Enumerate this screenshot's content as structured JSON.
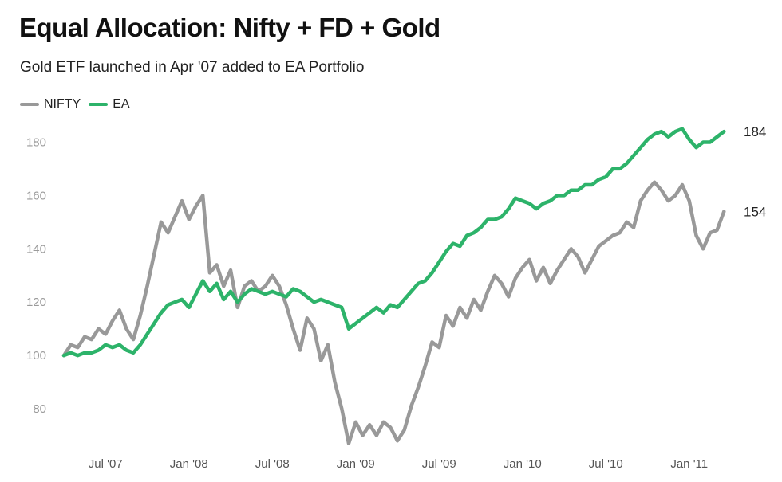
{
  "chart_data": {
    "type": "line",
    "title": "Equal Allocation: Nifty + FD + Gold",
    "subtitle": "Gold ETF launched in Apr '07 added to EA Portfolio",
    "xlabel": "",
    "ylabel": "",
    "ylim": [
      60,
      190
    ],
    "yticks": [
      80,
      100,
      120,
      140,
      160,
      180
    ],
    "xlim": [
      0,
      48
    ],
    "xticks": [
      {
        "x": 3,
        "label": "Jul '07"
      },
      {
        "x": 9,
        "label": "Jan '08"
      },
      {
        "x": 15,
        "label": "Jul '08"
      },
      {
        "x": 21,
        "label": "Jan '09"
      },
      {
        "x": 27,
        "label": "Jul '09"
      },
      {
        "x": 33,
        "label": "Jan '10"
      },
      {
        "x": 39,
        "label": "Jul '10"
      },
      {
        "x": 45,
        "label": "Jan '11"
      }
    ],
    "x_unit": "months since Apr '07",
    "legend_position": "top-left",
    "series": [
      {
        "name": "NIFTY",
        "color": "#999999",
        "end_label": "154",
        "points": [
          [
            0,
            100
          ],
          [
            0.5,
            104
          ],
          [
            1,
            103
          ],
          [
            1.5,
            107
          ],
          [
            2,
            106
          ],
          [
            2.5,
            110
          ],
          [
            3,
            108
          ],
          [
            3.5,
            113
          ],
          [
            4,
            117
          ],
          [
            4.5,
            110
          ],
          [
            5,
            106
          ],
          [
            5.5,
            115
          ],
          [
            6,
            126
          ],
          [
            6.5,
            138
          ],
          [
            7,
            150
          ],
          [
            7.5,
            146
          ],
          [
            8,
            152
          ],
          [
            8.5,
            158
          ],
          [
            9,
            151
          ],
          [
            9.5,
            156
          ],
          [
            10,
            160
          ],
          [
            10.5,
            131
          ],
          [
            11,
            134
          ],
          [
            11.5,
            126
          ],
          [
            12,
            132
          ],
          [
            12.5,
            118
          ],
          [
            13,
            126
          ],
          [
            13.5,
            128
          ],
          [
            14,
            124
          ],
          [
            14.5,
            126
          ],
          [
            15,
            130
          ],
          [
            15.5,
            126
          ],
          [
            16,
            119
          ],
          [
            16.5,
            110
          ],
          [
            17,
            102
          ],
          [
            17.5,
            114
          ],
          [
            18,
            110
          ],
          [
            18.5,
            98
          ],
          [
            19,
            104
          ],
          [
            19.5,
            90
          ],
          [
            20,
            80
          ],
          [
            20.5,
            67
          ],
          [
            21,
            75
          ],
          [
            21.5,
            70
          ],
          [
            22,
            74
          ],
          [
            22.5,
            70
          ],
          [
            23,
            75
          ],
          [
            23.5,
            73
          ],
          [
            24,
            68
          ],
          [
            24.5,
            72
          ],
          [
            25,
            81
          ],
          [
            25.5,
            88
          ],
          [
            26,
            96
          ],
          [
            26.5,
            105
          ],
          [
            27,
            103
          ],
          [
            27.5,
            115
          ],
          [
            28,
            111
          ],
          [
            28.5,
            118
          ],
          [
            29,
            114
          ],
          [
            29.5,
            121
          ],
          [
            30,
            117
          ],
          [
            30.5,
            124
          ],
          [
            31,
            130
          ],
          [
            31.5,
            127
          ],
          [
            32,
            122
          ],
          [
            32.5,
            129
          ],
          [
            33,
            133
          ],
          [
            33.5,
            136
          ],
          [
            34,
            128
          ],
          [
            34.5,
            133
          ],
          [
            35,
            127
          ],
          [
            35.5,
            132
          ],
          [
            36,
            136
          ],
          [
            36.5,
            140
          ],
          [
            37,
            137
          ],
          [
            37.5,
            131
          ],
          [
            38,
            136
          ],
          [
            38.5,
            141
          ],
          [
            39,
            143
          ],
          [
            39.5,
            145
          ],
          [
            40,
            146
          ],
          [
            40.5,
            150
          ],
          [
            41,
            148
          ],
          [
            41.5,
            158
          ],
          [
            42,
            162
          ],
          [
            42.5,
            165
          ],
          [
            43,
            162
          ],
          [
            43.5,
            158
          ],
          [
            44,
            160
          ],
          [
            44.5,
            164
          ],
          [
            45,
            158
          ],
          [
            45.5,
            145
          ],
          [
            46,
            140
          ],
          [
            46.5,
            146
          ],
          [
            47,
            147
          ],
          [
            47.5,
            154
          ]
        ]
      },
      {
        "name": "EA",
        "color": "#2db36a",
        "end_label": "184",
        "points": [
          [
            0,
            100
          ],
          [
            0.5,
            101
          ],
          [
            1,
            100
          ],
          [
            1.5,
            101
          ],
          [
            2,
            101
          ],
          [
            2.5,
            102
          ],
          [
            3,
            104
          ],
          [
            3.5,
            103
          ],
          [
            4,
            104
          ],
          [
            4.5,
            102
          ],
          [
            5,
            101
          ],
          [
            5.5,
            104
          ],
          [
            6,
            108
          ],
          [
            6.5,
            112
          ],
          [
            7,
            116
          ],
          [
            7.5,
            119
          ],
          [
            8,
            120
          ],
          [
            8.5,
            121
          ],
          [
            9,
            118
          ],
          [
            9.5,
            123
          ],
          [
            10,
            128
          ],
          [
            10.5,
            124
          ],
          [
            11,
            127
          ],
          [
            11.5,
            121
          ],
          [
            12,
            124
          ],
          [
            12.5,
            120
          ],
          [
            13,
            123
          ],
          [
            13.5,
            125
          ],
          [
            14,
            124
          ],
          [
            14.5,
            123
          ],
          [
            15,
            124
          ],
          [
            15.5,
            123
          ],
          [
            16,
            122
          ],
          [
            16.5,
            125
          ],
          [
            17,
            124
          ],
          [
            17.5,
            122
          ],
          [
            18,
            120
          ],
          [
            18.5,
            121
          ],
          [
            19,
            120
          ],
          [
            19.5,
            119
          ],
          [
            20,
            118
          ],
          [
            20.5,
            110
          ],
          [
            21,
            112
          ],
          [
            21.5,
            114
          ],
          [
            22,
            116
          ],
          [
            22.5,
            118
          ],
          [
            23,
            116
          ],
          [
            23.5,
            119
          ],
          [
            24,
            118
          ],
          [
            24.5,
            121
          ],
          [
            25,
            124
          ],
          [
            25.5,
            127
          ],
          [
            26,
            128
          ],
          [
            26.5,
            131
          ],
          [
            27,
            135
          ],
          [
            27.5,
            139
          ],
          [
            28,
            142
          ],
          [
            28.5,
            141
          ],
          [
            29,
            145
          ],
          [
            29.5,
            146
          ],
          [
            30,
            148
          ],
          [
            30.5,
            151
          ],
          [
            31,
            151
          ],
          [
            31.5,
            152
          ],
          [
            32,
            155
          ],
          [
            32.5,
            159
          ],
          [
            33,
            158
          ],
          [
            33.5,
            157
          ],
          [
            34,
            155
          ],
          [
            34.5,
            157
          ],
          [
            35,
            158
          ],
          [
            35.5,
            160
          ],
          [
            36,
            160
          ],
          [
            36.5,
            162
          ],
          [
            37,
            162
          ],
          [
            37.5,
            164
          ],
          [
            38,
            164
          ],
          [
            38.5,
            166
          ],
          [
            39,
            167
          ],
          [
            39.5,
            170
          ],
          [
            40,
            170
          ],
          [
            40.5,
            172
          ],
          [
            41,
            175
          ],
          [
            41.5,
            178
          ],
          [
            42,
            181
          ],
          [
            42.5,
            183
          ],
          [
            43,
            184
          ],
          [
            43.5,
            182
          ],
          [
            44,
            184
          ],
          [
            44.5,
            185
          ],
          [
            45,
            181
          ],
          [
            45.5,
            178
          ],
          [
            46,
            180
          ],
          [
            46.5,
            180
          ],
          [
            47,
            182
          ],
          [
            47.5,
            184
          ]
        ]
      }
    ]
  }
}
